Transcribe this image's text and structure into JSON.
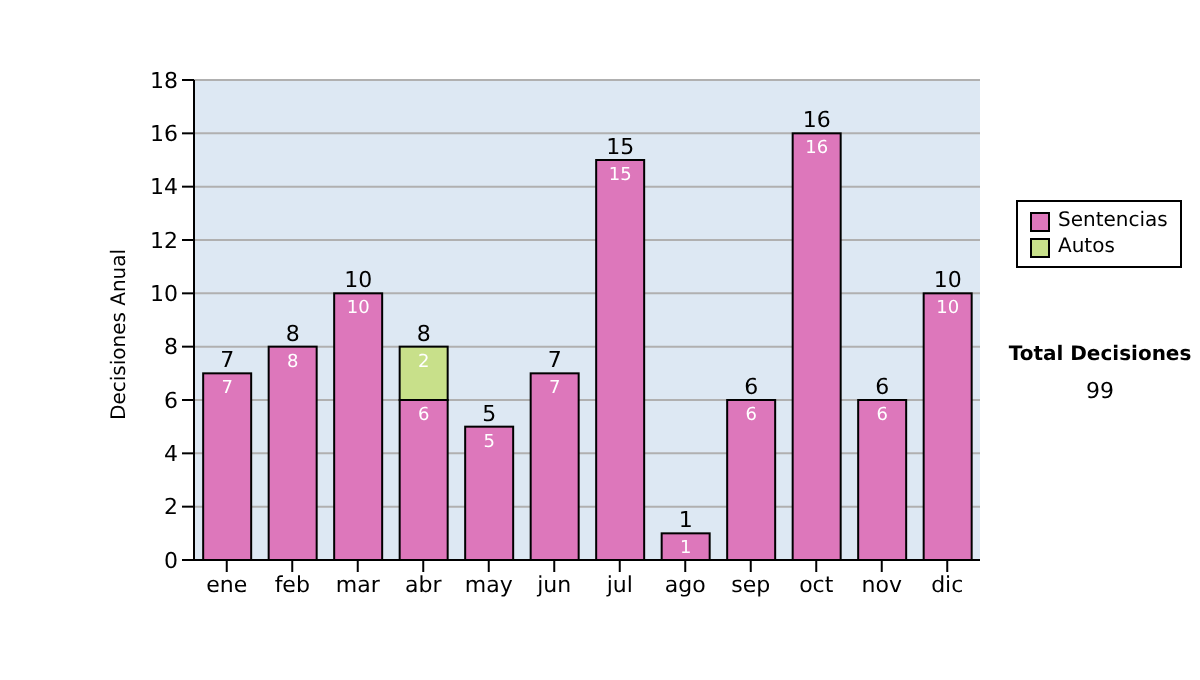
{
  "chart_data": {
    "type": "bar",
    "ylabel": "Decisiones Anual",
    "categories": [
      "ene",
      "feb",
      "mar",
      "abr",
      "may",
      "jun",
      "jul",
      "ago",
      "sep",
      "oct",
      "nov",
      "dic"
    ],
    "stacked": true,
    "series": [
      {
        "name": "Sentencias",
        "color": "#dd77bb",
        "values": [
          7,
          8,
          10,
          6,
          5,
          7,
          15,
          1,
          6,
          16,
          6,
          10
        ],
        "value_labels": [
          "7",
          "8",
          "10",
          "6",
          "5",
          "7",
          "15",
          "1",
          "6",
          "16",
          "6",
          "10"
        ]
      },
      {
        "name": "Autos",
        "color": "#c8e08a",
        "values": [
          0,
          0,
          0,
          2,
          0,
          0,
          0,
          0,
          0,
          0,
          0,
          0
        ],
        "value_labels": [
          null,
          null,
          null,
          "2",
          null,
          null,
          null,
          null,
          null,
          null,
          null,
          null
        ]
      }
    ],
    "totals": [
      "7",
      "8",
      "10",
      "8",
      "5",
      "7",
      "15",
      "1",
      "6",
      "16",
      "6",
      "10"
    ],
    "ylim": [
      0,
      18
    ],
    "yticks": [
      0,
      2,
      4,
      6,
      8,
      10,
      12,
      14,
      16,
      18
    ],
    "grid": "y",
    "legend": "right",
    "annotations": [
      "Total Decisiones",
      "99"
    ]
  }
}
